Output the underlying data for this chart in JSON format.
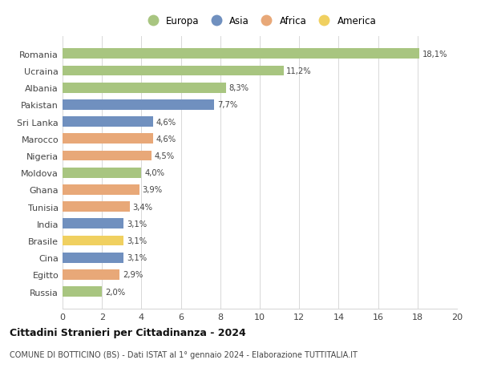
{
  "countries": [
    "Romania",
    "Ucraina",
    "Albania",
    "Pakistan",
    "Sri Lanka",
    "Marocco",
    "Nigeria",
    "Moldova",
    "Ghana",
    "Tunisia",
    "India",
    "Brasile",
    "Cina",
    "Egitto",
    "Russia"
  ],
  "values": [
    18.1,
    11.2,
    8.3,
    7.7,
    4.6,
    4.6,
    4.5,
    4.0,
    3.9,
    3.4,
    3.1,
    3.1,
    3.1,
    2.9,
    2.0
  ],
  "labels": [
    "18,1%",
    "11,2%",
    "8,3%",
    "7,7%",
    "4,6%",
    "4,6%",
    "4,5%",
    "4,0%",
    "3,9%",
    "3,4%",
    "3,1%",
    "3,1%",
    "3,1%",
    "2,9%",
    "2,0%"
  ],
  "continents": [
    "Europa",
    "Europa",
    "Europa",
    "Asia",
    "Asia",
    "Africa",
    "Africa",
    "Europa",
    "Africa",
    "Africa",
    "Asia",
    "America",
    "Asia",
    "Africa",
    "Europa"
  ],
  "colors": {
    "Europa": "#a8c580",
    "Asia": "#7090bf",
    "Africa": "#e8a878",
    "America": "#f0d060"
  },
  "legend_order": [
    "Europa",
    "Asia",
    "Africa",
    "America"
  ],
  "xlim": [
    0,
    20
  ],
  "xticks": [
    0,
    2,
    4,
    6,
    8,
    10,
    12,
    14,
    16,
    18,
    20
  ],
  "title": "Cittadini Stranieri per Cittadinanza - 2024",
  "subtitle": "COMUNE DI BOTTICINO (BS) - Dati ISTAT al 1° gennaio 2024 - Elaborazione TUTTITALIA.IT",
  "background_color": "#ffffff",
  "grid_color": "#d8d8d8"
}
